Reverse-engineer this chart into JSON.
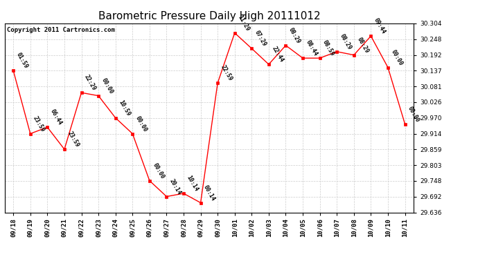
{
  "title": "Barometric Pressure Daily High 20111012",
  "copyright": "Copyright 2011 Cartronics.com",
  "x_labels": [
    "09/18",
    "09/19",
    "09/20",
    "09/21",
    "09/22",
    "09/23",
    "09/24",
    "09/25",
    "09/26",
    "09/27",
    "09/28",
    "09/29",
    "09/30",
    "10/01",
    "10/02",
    "10/03",
    "10/04",
    "10/05",
    "10/06",
    "10/07",
    "10/08",
    "10/09",
    "10/10",
    "10/11"
  ],
  "y_values": [
    30.137,
    29.914,
    29.937,
    29.859,
    30.059,
    30.048,
    29.97,
    29.914,
    29.748,
    29.692,
    29.703,
    29.67,
    30.093,
    30.27,
    30.215,
    30.159,
    30.226,
    30.181,
    30.181,
    30.204,
    30.192,
    30.259,
    30.148,
    29.948
  ],
  "point_labels": [
    "01:59",
    "23:59",
    "06:44",
    "23:59",
    "22:29",
    "00:00",
    "10:59",
    "00:00",
    "00:00",
    "20:14",
    "10:14",
    "00:14",
    "22:59",
    "11:29",
    "07:29",
    "22:44",
    "08:29",
    "08:44",
    "08:59",
    "08:29",
    "08:29",
    "09:44",
    "00:00",
    "00:00"
  ],
  "ylim_min": 29.636,
  "ylim_max": 30.304,
  "yticks": [
    29.636,
    29.692,
    29.748,
    29.803,
    29.859,
    29.914,
    29.97,
    30.026,
    30.081,
    30.137,
    30.192,
    30.248,
    30.304
  ],
  "line_color": "#ff0000",
  "marker_color": "#ff0000",
  "bg_color": "#ffffff",
  "grid_color": "#cccccc",
  "title_fontsize": 11,
  "label_fontsize": 6.0,
  "tick_fontsize": 6.5,
  "copyright_fontsize": 6.5
}
